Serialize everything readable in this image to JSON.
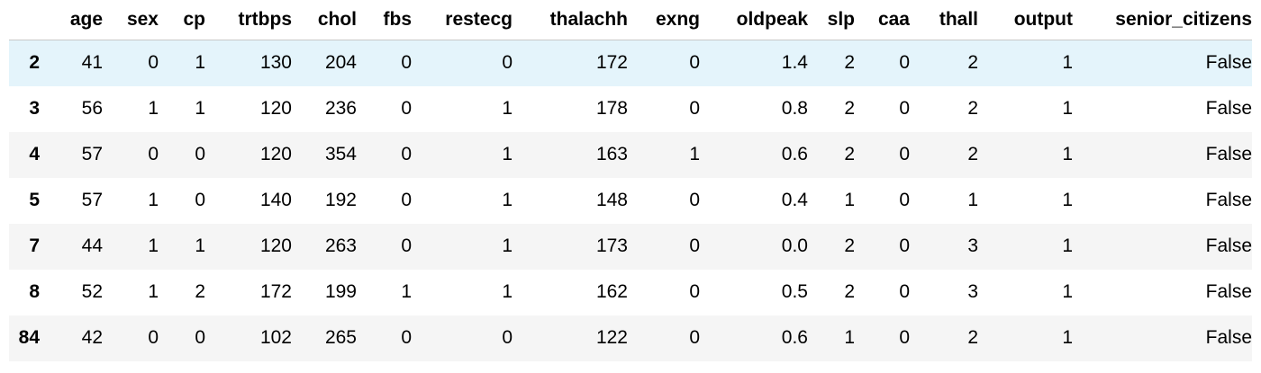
{
  "table": {
    "index_header": "",
    "columns": [
      "age",
      "sex",
      "cp",
      "trtbps",
      "chol",
      "fbs",
      "restecg",
      "thalachh",
      "exng",
      "oldpeak",
      "slp",
      "caa",
      "thall",
      "output",
      "senior_citizens"
    ],
    "rows": [
      {
        "index": "2",
        "cells": [
          "41",
          "0",
          "1",
          "130",
          "204",
          "0",
          "0",
          "172",
          "0",
          "1.4",
          "2",
          "0",
          "2",
          "1",
          "False"
        ]
      },
      {
        "index": "3",
        "cells": [
          "56",
          "1",
          "1",
          "120",
          "236",
          "0",
          "1",
          "178",
          "0",
          "0.8",
          "2",
          "0",
          "2",
          "1",
          "False"
        ]
      },
      {
        "index": "4",
        "cells": [
          "57",
          "0",
          "0",
          "120",
          "354",
          "0",
          "1",
          "163",
          "1",
          "0.6",
          "2",
          "0",
          "2",
          "1",
          "False"
        ]
      },
      {
        "index": "5",
        "cells": [
          "57",
          "1",
          "0",
          "140",
          "192",
          "0",
          "1",
          "148",
          "0",
          "0.4",
          "1",
          "0",
          "1",
          "1",
          "False"
        ]
      },
      {
        "index": "7",
        "cells": [
          "44",
          "1",
          "1",
          "120",
          "263",
          "0",
          "1",
          "173",
          "0",
          "0.0",
          "2",
          "0",
          "3",
          "1",
          "False"
        ]
      },
      {
        "index": "8",
        "cells": [
          "52",
          "1",
          "2",
          "172",
          "199",
          "1",
          "1",
          "162",
          "0",
          "0.5",
          "2",
          "0",
          "3",
          "1",
          "False"
        ]
      },
      {
        "index": "84",
        "cells": [
          "42",
          "0",
          "0",
          "102",
          "265",
          "0",
          "0",
          "122",
          "0",
          "0.6",
          "1",
          "0",
          "2",
          "1",
          "False"
        ]
      }
    ],
    "hovered_row": 0,
    "colors": {
      "hover_row": "#e4f4fb",
      "striped_row": "#f5f5f5",
      "header_border": "#c8c8c8"
    }
  }
}
